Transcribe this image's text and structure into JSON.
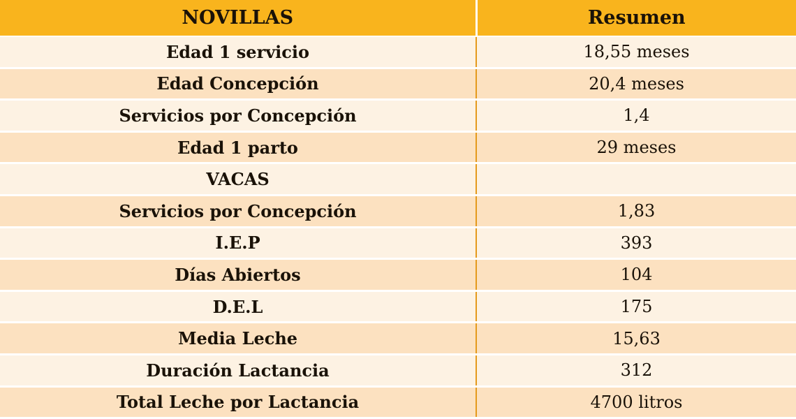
{
  "header": {
    "col1": "NOVILLAS",
    "col2": "Resumen"
  },
  "rows": [
    {
      "label": "Edad 1 servicio",
      "value": "18,55 meses"
    },
    {
      "label": "Edad Concepción",
      "value": "20,4 meses"
    },
    {
      "label": "Servicios por Concepción",
      "value": "1,4"
    },
    {
      "label": "Edad 1 parto",
      "value": "29 meses"
    },
    {
      "label": "VACAS",
      "value": ""
    },
    {
      "label": "Servicios por Concepción",
      "value": "1,83"
    },
    {
      "label": "I.E.P",
      "value": "393"
    },
    {
      "label": "Días Abiertos",
      "value": "104"
    },
    {
      "label": "D.E.L",
      "value": "175"
    },
    {
      "label": "Media Leche",
      "value": "15,63"
    },
    {
      "label": "Duración Lactancia",
      "value": "312"
    },
    {
      "label": "Total Leche por Lactancia",
      "value": "4700 litros"
    }
  ],
  "colors": {
    "header_bg": "#f9b41d",
    "row_light": "#fdf2e3",
    "row_dark": "#fce1c0",
    "divider": "#e59a1c"
  }
}
